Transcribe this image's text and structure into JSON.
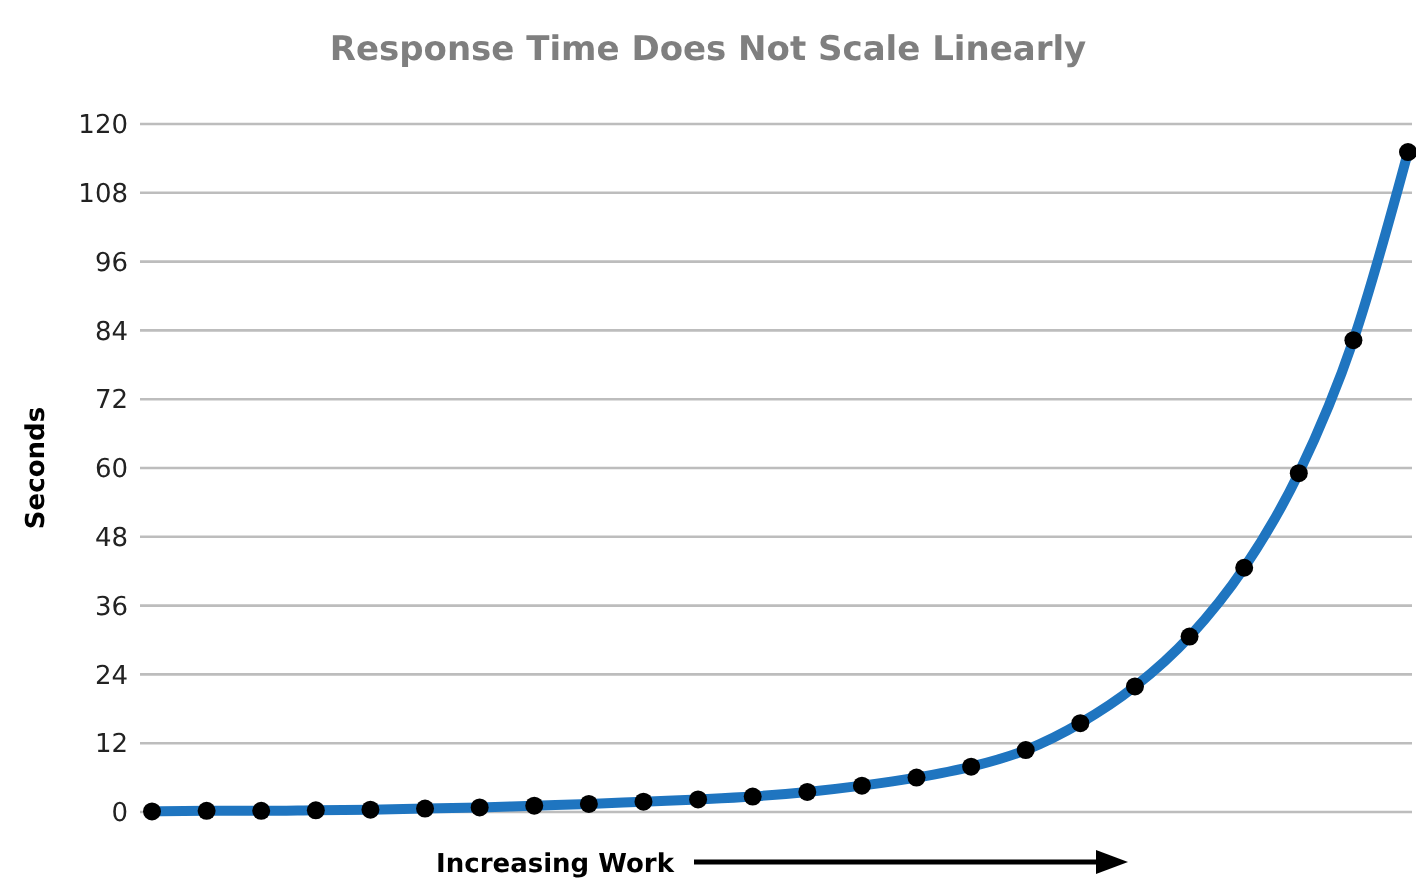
{
  "chart_data": {
    "type": "line",
    "title": "Response Time Does Not Scale Linearly",
    "xlabel": "Increasing Work",
    "ylabel": "Seconds",
    "categories": [
      null,
      null,
      null,
      null,
      null,
      null,
      null,
      null,
      null,
      null,
      null,
      null,
      null,
      null,
      null,
      null,
      null,
      null,
      null,
      null,
      null,
      null,
      null,
      null
    ],
    "series": [
      {
        "color": "#1f75c0",
        "values": [
          0.1,
          0.2,
          0.2,
          0.3,
          0.4,
          0.6,
          0.8,
          1.1,
          1.4,
          1.8,
          2.2,
          2.7,
          3.5,
          4.6,
          6.0,
          7.9,
          10.8,
          15.5,
          21.9,
          30.6,
          42.6,
          59.1,
          82.3,
          115.1
        ]
      }
    ],
    "ylim": [
      0,
      120
    ],
    "yticks": [
      0,
      12,
      24,
      36,
      48,
      60,
      72,
      84,
      96,
      108,
      120
    ],
    "grid": "y",
    "marker": "circle",
    "line_style": "solid"
  }
}
